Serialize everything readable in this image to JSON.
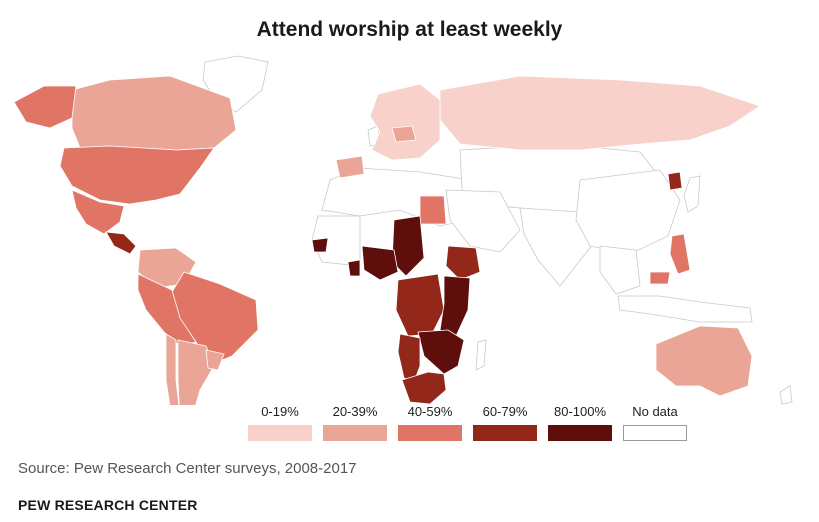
{
  "title": "Attend worship at least weekly",
  "source": "Source: Pew Research Center surveys, 2008-2017",
  "organization": "PEW RESEARCH CENTER",
  "colors": {
    "c0": "#f8d2ca",
    "c1": "#eba596",
    "c2": "#e07565",
    "c3": "#93281a",
    "c4": "#5e0e0b",
    "nodata": "#ffffff",
    "nodata_border": "#999999"
  },
  "legend": [
    {
      "label": "0-19%",
      "class": "c0"
    },
    {
      "label": "20-39%",
      "class": "c1"
    },
    {
      "label": "40-59%",
      "class": "c2"
    },
    {
      "label": "60-79%",
      "class": "c3"
    },
    {
      "label": "80-100%",
      "class": "c4"
    },
    {
      "label": "No data",
      "class": "nodata"
    }
  ],
  "regions": [
    {
      "name": "canada",
      "class": "c1"
    },
    {
      "name": "alaska",
      "class": "c2"
    },
    {
      "name": "usa",
      "class": "c2"
    },
    {
      "name": "mexico",
      "class": "c2"
    },
    {
      "name": "central-america",
      "class": "c3"
    },
    {
      "name": "venezuela-colombia",
      "class": "c1"
    },
    {
      "name": "brazil",
      "class": "c2"
    },
    {
      "name": "peru-bolivia",
      "class": "c2"
    },
    {
      "name": "chile",
      "class": "c1"
    },
    {
      "name": "argentina",
      "class": "c1"
    },
    {
      "name": "uruguay",
      "class": "c1"
    },
    {
      "name": "russia",
      "class": "c0"
    },
    {
      "name": "western-europe",
      "class": "c0"
    },
    {
      "name": "poland",
      "class": "c1"
    },
    {
      "name": "spain",
      "class": "c1"
    },
    {
      "name": "egypt",
      "class": "c2"
    },
    {
      "name": "chad-niger",
      "class": "c4"
    },
    {
      "name": "nigeria",
      "class": "c4"
    },
    {
      "name": "ethiopia",
      "class": "c3"
    },
    {
      "name": "dr-congo",
      "class": "c3"
    },
    {
      "name": "east-africa",
      "class": "c4"
    },
    {
      "name": "zambia-mozambique",
      "class": "c4"
    },
    {
      "name": "angola-namibia",
      "class": "c3"
    },
    {
      "name": "south-africa",
      "class": "c3"
    },
    {
      "name": "senegal",
      "class": "c4"
    },
    {
      "name": "ghana",
      "class": "c4"
    },
    {
      "name": "south-korea",
      "class": "c3"
    },
    {
      "name": "philippines",
      "class": "c2"
    },
    {
      "name": "malaysia",
      "class": "c2"
    },
    {
      "name": "australia",
      "class": "c1"
    }
  ]
}
